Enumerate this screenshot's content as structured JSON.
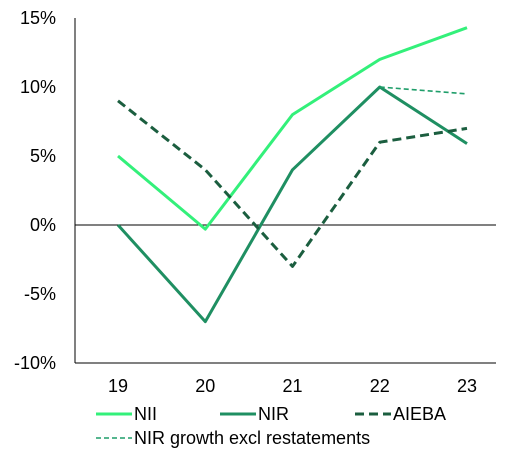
{
  "chart_data": {
    "type": "line",
    "title": "",
    "xlabel": "",
    "ylabel": "",
    "categories": [
      "19",
      "20",
      "21",
      "22",
      "23"
    ],
    "ylim": [
      -10,
      15
    ],
    "yticks": [
      15,
      10,
      5,
      0,
      -5,
      -10
    ],
    "ytick_labels": [
      "15%",
      "10%",
      "5%",
      "0%",
      "-5%",
      "-10%"
    ],
    "grid": false,
    "legend_position": "bottom",
    "series": [
      {
        "name": "NII",
        "color": "#33f07a",
        "dash": "solid",
        "values": [
          5,
          -0.3,
          8,
          12,
          14.3
        ]
      },
      {
        "name": "NIR",
        "color": "#1f8f62",
        "dash": "solid",
        "values": [
          0,
          -7,
          4,
          10,
          5.9
        ]
      },
      {
        "name": "AIEBA",
        "color": "#1b5e3f",
        "dash": "dashed",
        "values": [
          9,
          4,
          -3,
          6,
          7
        ]
      },
      {
        "name": "NIR growth excl restatements",
        "color": "#1f9e6a",
        "dash": "dotted",
        "values": [
          null,
          null,
          null,
          10,
          9.5
        ]
      }
    ]
  }
}
